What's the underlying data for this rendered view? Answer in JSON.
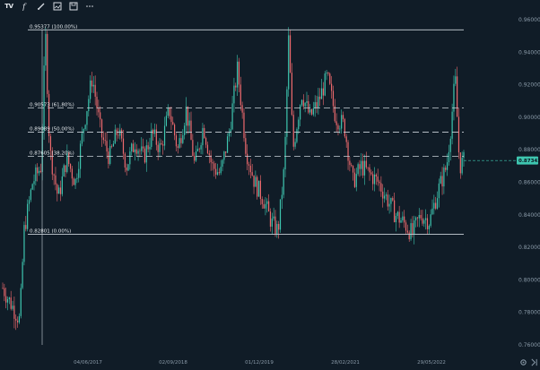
{
  "toolbar": {
    "logo": "TV",
    "tools": [
      {
        "name": "indicator-icon"
      },
      {
        "name": "brush-icon"
      },
      {
        "name": "snapshot-icon"
      },
      {
        "name": "save-icon"
      },
      {
        "name": "more-icon"
      }
    ]
  },
  "price_axis": {
    "ticks": [
      "0.96000",
      "0.94000",
      "0.92000",
      "0.90000",
      "0.88000",
      "0.86000",
      "0.84000",
      "0.82000",
      "0.80000",
      "0.78000",
      "0.76000"
    ],
    "current_price": "0.87342"
  },
  "time_axis": {
    "ticks": [
      "04/06/2017",
      "02/09/2018",
      "01/12/2019",
      "28/02/2021",
      "29/05/2022"
    ]
  },
  "fibonacci": {
    "levels": [
      {
        "label": "0.95377 (100.00%)",
        "price": 0.95377,
        "dashed": false
      },
      {
        "label": "0.90573 (61.80%)",
        "price": 0.90573,
        "dashed": true
      },
      {
        "label": "0.89089 (50.00%)",
        "price": 0.89089,
        "dashed": true
      },
      {
        "label": "0.87605 (38.20%)",
        "price": 0.87605,
        "dashed": true
      },
      {
        "label": "0.82801 (0.00%)",
        "price": 0.82801,
        "dashed": false
      }
    ]
  },
  "colors": {
    "background": "#101c27",
    "bull": "#3ec6b0",
    "bear": "#ef6a6e",
    "fib_line": "#c9d1d8",
    "current_price_badge": "#3ec6b0"
  },
  "chart_data": {
    "type": "candlestick",
    "ylim": [
      0.755,
      0.965
    ],
    "x_ticks": [
      "04/06/2017",
      "02/09/2018",
      "01/12/2019",
      "28/02/2021",
      "29/05/2022"
    ],
    "close_path": [
      [
        0.0,
        0.795
      ],
      [
        0.02,
        0.785
      ],
      [
        0.04,
        0.775
      ],
      [
        0.05,
        0.83
      ],
      [
        0.07,
        0.86
      ],
      [
        0.09,
        0.87
      ],
      [
        0.1,
        0.953
      ],
      [
        0.11,
        0.88
      ],
      [
        0.13,
        0.85
      ],
      [
        0.15,
        0.875
      ],
      [
        0.17,
        0.86
      ],
      [
        0.19,
        0.895
      ],
      [
        0.21,
        0.925
      ],
      [
        0.23,
        0.89
      ],
      [
        0.25,
        0.875
      ],
      [
        0.27,
        0.893
      ],
      [
        0.29,
        0.87
      ],
      [
        0.31,
        0.885
      ],
      [
        0.33,
        0.875
      ],
      [
        0.35,
        0.89
      ],
      [
        0.37,
        0.88
      ],
      [
        0.39,
        0.905
      ],
      [
        0.41,
        0.88
      ],
      [
        0.43,
        0.905
      ],
      [
        0.45,
        0.87
      ],
      [
        0.47,
        0.895
      ],
      [
        0.49,
        0.87
      ],
      [
        0.51,
        0.865
      ],
      [
        0.53,
        0.89
      ],
      [
        0.55,
        0.93
      ],
      [
        0.57,
        0.88
      ],
      [
        0.59,
        0.86
      ],
      [
        0.61,
        0.85
      ],
      [
        0.63,
        0.835
      ],
      [
        0.645,
        0.83
      ],
      [
        0.66,
        0.87
      ],
      [
        0.67,
        0.95
      ],
      [
        0.68,
        0.88
      ],
      [
        0.7,
        0.915
      ],
      [
        0.72,
        0.9
      ],
      [
        0.74,
        0.91
      ],
      [
        0.76,
        0.925
      ],
      [
        0.78,
        0.9
      ],
      [
        0.8,
        0.895
      ],
      [
        0.82,
        0.86
      ],
      [
        0.84,
        0.87
      ],
      [
        0.86,
        0.865
      ],
      [
        0.88,
        0.86
      ],
      [
        0.9,
        0.85
      ],
      [
        0.92,
        0.84
      ],
      [
        0.94,
        0.835
      ],
      [
        0.96,
        0.828
      ],
      [
        0.97,
        0.835
      ],
      [
        0.98,
        0.84
      ],
      [
        1.0,
        0.836
      ],
      [
        1.02,
        0.855
      ],
      [
        1.04,
        0.87
      ],
      [
        1.05,
        0.895
      ],
      [
        1.06,
        0.925
      ],
      [
        1.07,
        0.87
      ],
      [
        1.08,
        0.873
      ]
    ]
  }
}
